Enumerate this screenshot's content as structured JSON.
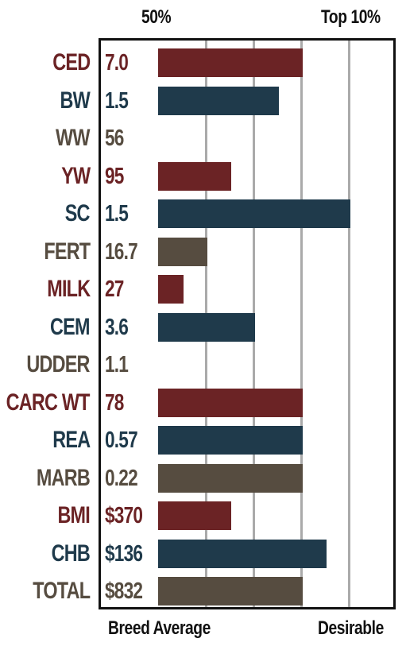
{
  "header": {
    "left": "50%",
    "right": "Top 10%"
  },
  "footer": {
    "left": "Breed Average",
    "right": "Desirable"
  },
  "colors": {
    "red": "#6b2325",
    "blue": "#1f3a4b",
    "gray": "#564c40"
  },
  "chart_data": {
    "type": "bar",
    "orientation": "horizontal",
    "scale_labels": [
      "50%",
      "Top 10%"
    ],
    "footer_labels": [
      "Breed Average",
      "Desirable"
    ],
    "scale_note": "bar length in gridline units from Breed Average (0) toward Desirable; gridlines at 1,2,3,4",
    "grid": true,
    "xlim": [
      0,
      4
    ],
    "rows": [
      {
        "trait": "CED",
        "value": "7.0",
        "bar": 3.0,
        "color": "red"
      },
      {
        "trait": "BW",
        "value": "1.5",
        "bar": 2.5,
        "color": "blue"
      },
      {
        "trait": "WW",
        "value": "56",
        "bar": 0,
        "color": "gray"
      },
      {
        "trait": "YW",
        "value": "95",
        "bar": 1.5,
        "color": "red"
      },
      {
        "trait": "SC",
        "value": "1.5",
        "bar": 4.0,
        "color": "blue"
      },
      {
        "trait": "FERT",
        "value": "16.7",
        "bar": 1.0,
        "color": "gray"
      },
      {
        "trait": "MILK",
        "value": "27",
        "bar": 0.5,
        "color": "red"
      },
      {
        "trait": "CEM",
        "value": "3.6",
        "bar": 2.0,
        "color": "blue"
      },
      {
        "trait": "UDDER",
        "value": "1.1",
        "bar": 0,
        "color": "gray"
      },
      {
        "trait": "CARC WT",
        "value": "78",
        "bar": 3.0,
        "color": "red"
      },
      {
        "trait": "REA",
        "value": "0.57",
        "bar": 3.0,
        "color": "blue"
      },
      {
        "trait": "MARB",
        "value": "0.22",
        "bar": 3.0,
        "color": "gray"
      },
      {
        "trait": "BMI",
        "value": "$370",
        "bar": 1.5,
        "color": "red"
      },
      {
        "trait": "CHB",
        "value": "$136",
        "bar": 3.5,
        "color": "blue"
      },
      {
        "trait": "TOTAL",
        "value": "$832",
        "bar": 3.0,
        "color": "gray"
      }
    ]
  }
}
